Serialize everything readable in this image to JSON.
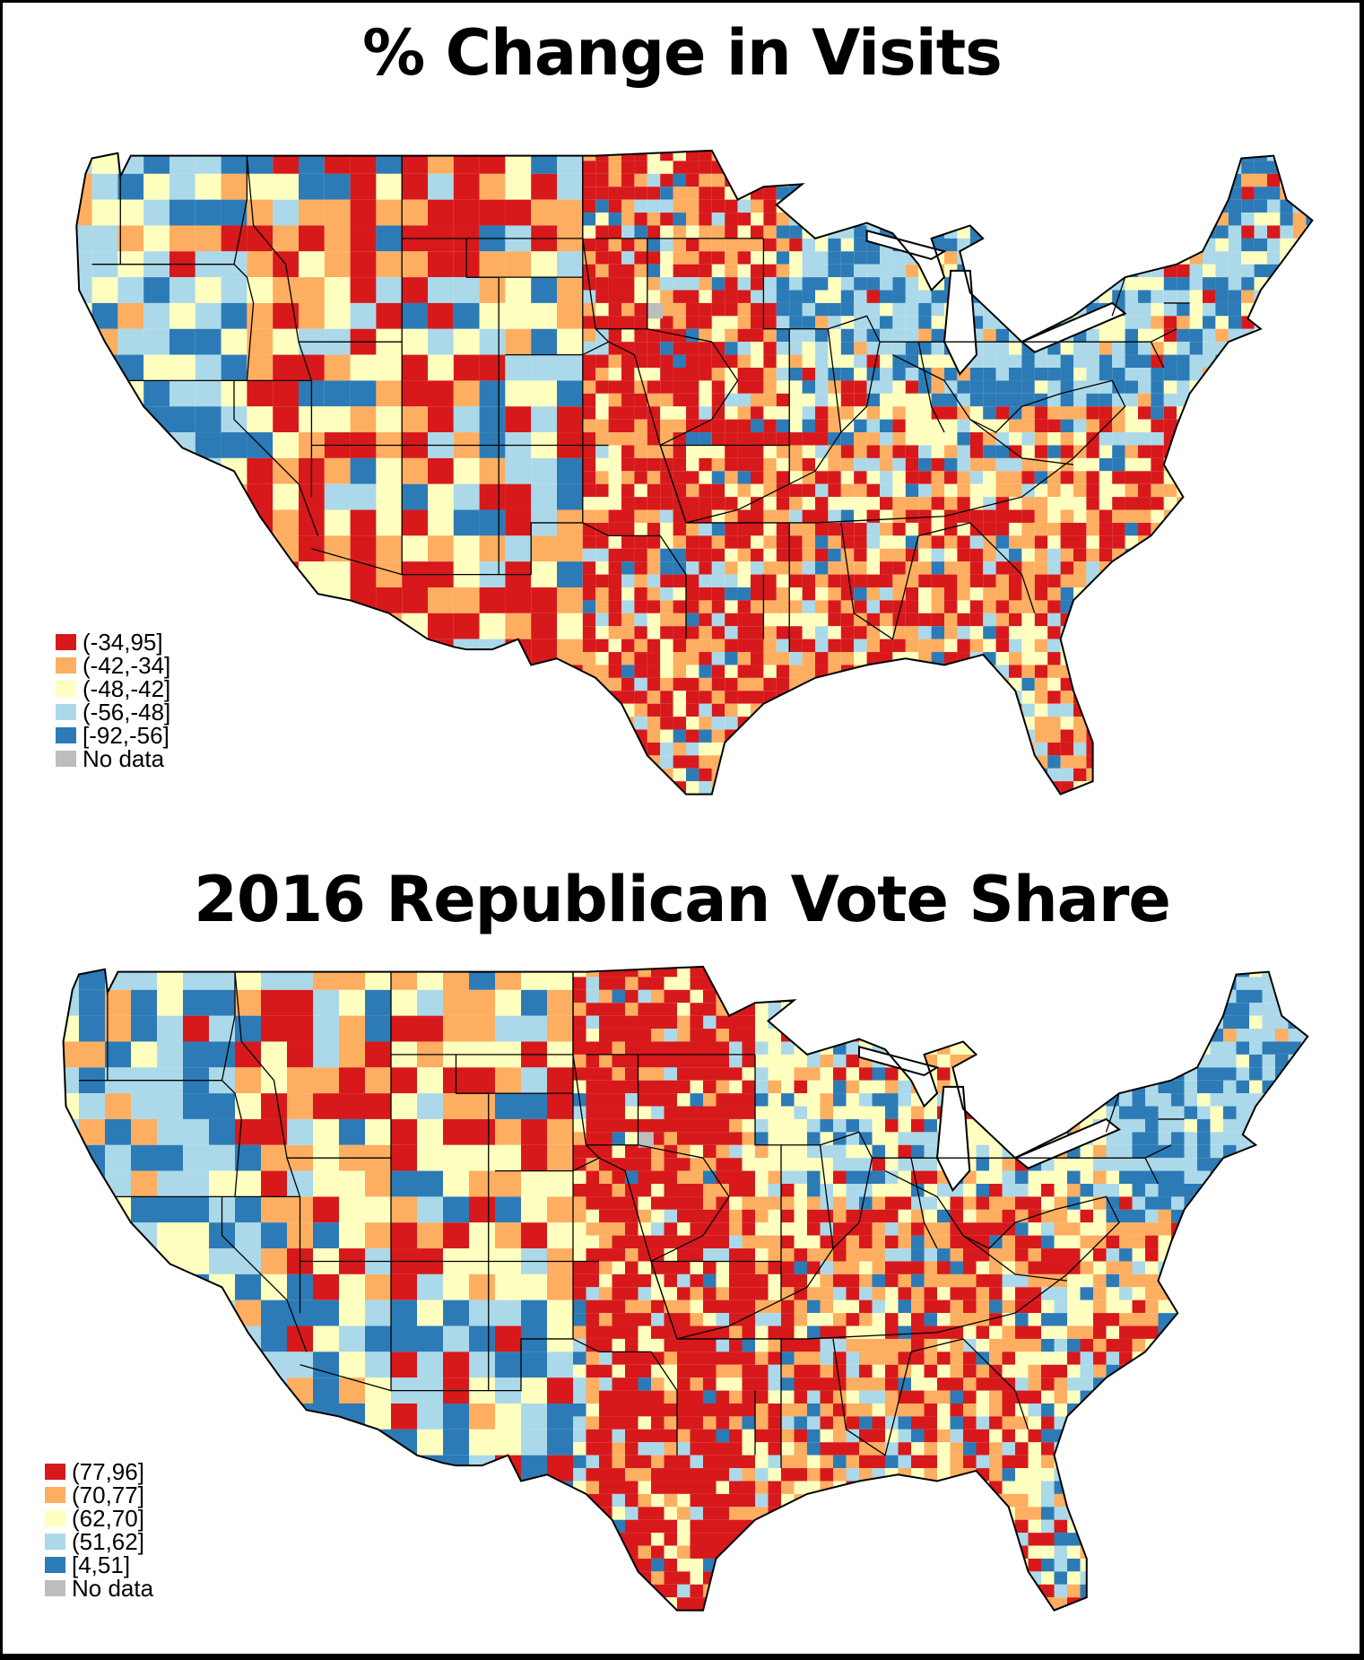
{
  "maps": [
    {
      "title": "% Change in Visits",
      "legend": [
        {
          "label": "(-34,95]",
          "color": "#d7191c"
        },
        {
          "label": "(-42,-34]",
          "color": "#fdae61"
        },
        {
          "label": "(-48,-42]",
          "color": "#ffffbf"
        },
        {
          "label": "(-56,-48]",
          "color": "#abd9e9"
        },
        {
          "label": "[-92,-56]",
          "color": "#2c7bb6"
        },
        {
          "label": "No data",
          "color": "#bdbdbd"
        }
      ]
    },
    {
      "title": "2016 Republican Vote Share",
      "legend": [
        {
          "label": "(77,96]",
          "color": "#d7191c"
        },
        {
          "label": "(70,77]",
          "color": "#fdae61"
        },
        {
          "label": "(62,70]",
          "color": "#ffffbf"
        },
        {
          "label": "(51,62]",
          "color": "#abd9e9"
        },
        {
          "label": "[4,51]",
          "color": "#2c7bb6"
        },
        {
          "label": "No data",
          "color": "#bdbdbd"
        }
      ]
    }
  ]
}
